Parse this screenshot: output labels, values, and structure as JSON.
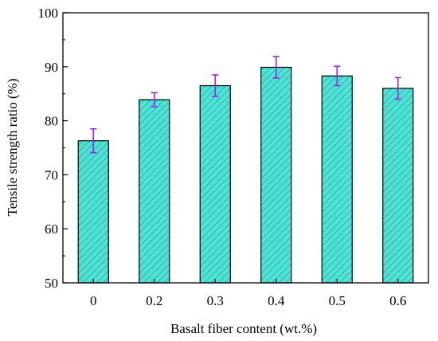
{
  "chart_data": {
    "type": "bar",
    "categories": [
      "0",
      "0.2",
      "0.3",
      "0.4",
      "0.5",
      "0.6"
    ],
    "values": [
      76.3,
      83.9,
      86.5,
      89.9,
      88.3,
      86.0
    ],
    "errors": [
      2.2,
      1.3,
      2.0,
      2.0,
      1.8,
      2.0
    ],
    "xlabel": "Basalt fiber content (wt.%)",
    "ylabel": "Tensile strength ratio (%)",
    "ylim": [
      50,
      100
    ],
    "yticks": [
      "50",
      "60",
      "70",
      "80",
      "90",
      "100"
    ],
    "grid": false,
    "legend": "none",
    "colors": {
      "bar_fill": "#4fe3d6",
      "bar_hatch": "#2aa7a0",
      "bar_edge": "#000000",
      "error_bar": "#a020f0"
    }
  }
}
